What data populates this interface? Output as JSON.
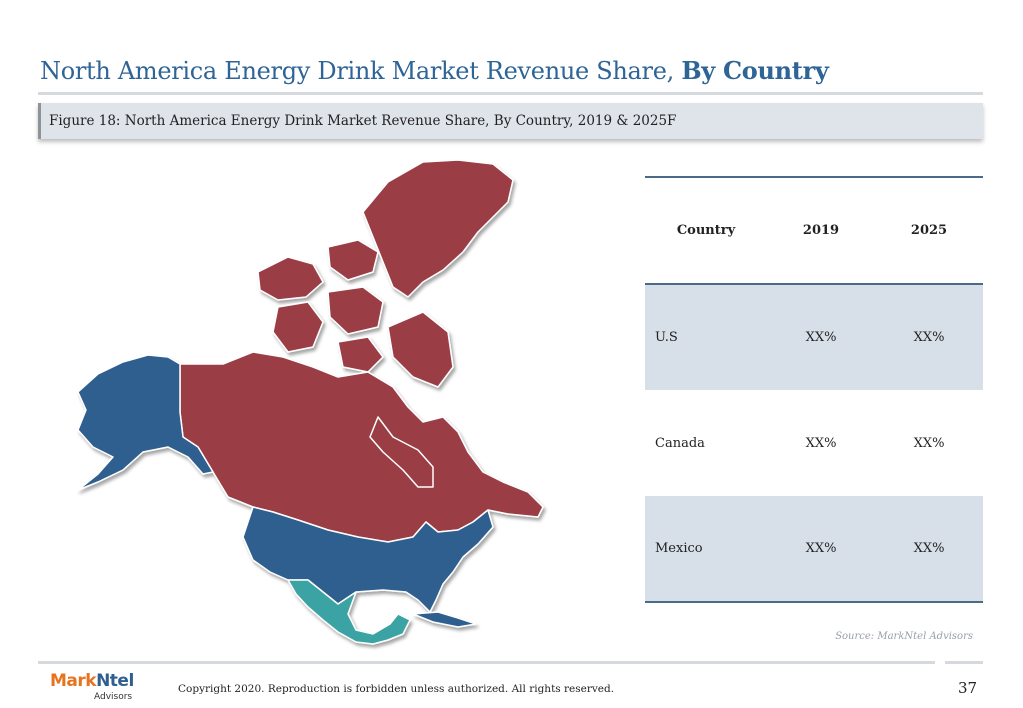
{
  "slide": {
    "title_main": "North America Energy Drink Market Revenue Share,",
    "title_bold": "By Country",
    "figure_caption": "Figure 18: North America Energy Drink Market Revenue Share, By Country, 2019 & 2025F",
    "source": "Source: MarkNtel Advisors",
    "copyright": "Copyright 2020. Reproduction is forbidden unless authorized. All rights reserved.",
    "page_number": "37"
  },
  "logo": {
    "mark": "Mark",
    "ntel": "Ntel",
    "sub": "Advisors"
  },
  "map": {
    "regions": [
      {
        "name": "Canada",
        "color": "#9b3d45"
      },
      {
        "name": "U.S",
        "color": "#2f5f8f"
      },
      {
        "name": "Mexico",
        "color": "#3aa3a3"
      }
    ]
  },
  "table": {
    "headers": [
      "Country",
      "2019",
      "2025"
    ],
    "rows": [
      {
        "country": "U.S",
        "y2019": "XX%",
        "y2025": "XX%"
      },
      {
        "country": "Canada",
        "y2019": "XX%",
        "y2025": "XX%"
      },
      {
        "country": "Mexico",
        "y2019": "XX%",
        "y2025": "XX%"
      }
    ]
  },
  "colors": {
    "accent": "#2e6496",
    "table_shade": "#d7dfe8",
    "rule": "#4a6a8a"
  }
}
